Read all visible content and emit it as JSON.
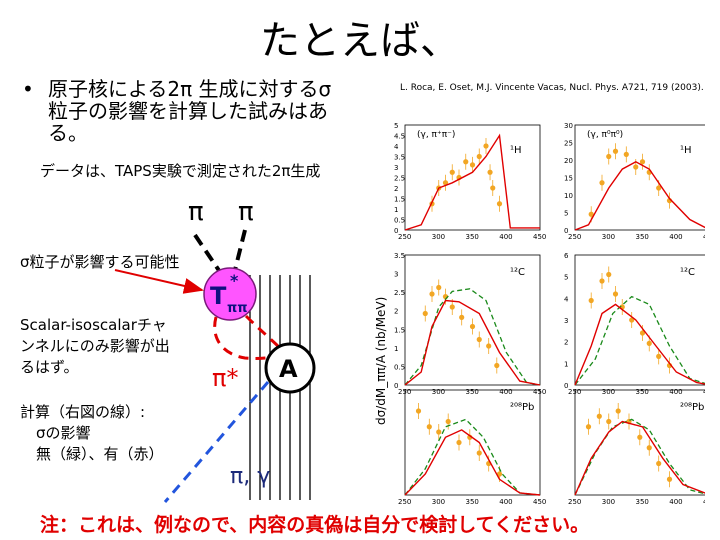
{
  "title": "たとえば、",
  "bullet": {
    "marker": "•",
    "text": "原子核による2π 生成に対するσ粒子の影響を計算した試みはある。"
  },
  "data_note": "データは、TAPS実験で測定された2π生成",
  "sigma_note": "σ粒子が影響する可能性",
  "scalar_note": "Scalar-isoscalarチャンネルにのみ影響が出るはず。",
  "calc_note": {
    "line1": "計算（右図の線）:",
    "line2": "σの影響",
    "line3": "無（緑）、有（赤）"
  },
  "reference": "L. Roca, E. Oset, M.J. Vincente Vacas, Nucl. Phys. A721, 719 (2003).",
  "footnote": "注：これは、例なので、内容の真偽は自分で検討してください。",
  "diagram": {
    "pi_top_left": "π",
    "pi_top_right": "π",
    "t_label": "T",
    "t_sub": "ππ",
    "t_sup": "*",
    "nucleus": "A",
    "pi_star": "π*",
    "pi_gamma": "π, γ"
  },
  "colors": {
    "red": "#e00000",
    "green": "#1a8a1a",
    "blue": "#2255dd",
    "orange_data": "#f2a623",
    "magenta_fill": "#ff55ff",
    "footnote": "#e00000"
  },
  "plots": {
    "ylabel": "dσ/dM_ππ/A (nb/MeV)",
    "x_ticks": [
      "250",
      "300",
      "350",
      "400",
      "450"
    ],
    "panels": [
      {
        "reaction": "(γ, π⁺π⁻)",
        "target": "¹H",
        "y_ticks": [
          "0",
          "0.5",
          "1",
          "1.5",
          "2",
          "2.5",
          "3",
          "3.5",
          "4",
          "4.5",
          "5"
        ]
      },
      {
        "reaction": "(γ, π⁰π⁰)",
        "target": "¹H",
        "y_ticks": [
          "0",
          "5",
          "10",
          "15",
          "20",
          "25",
          "30"
        ]
      },
      {
        "target": "¹²C",
        "y_ticks": [
          "0",
          "0.5",
          "1",
          "1.5",
          "2",
          "2.5",
          "3",
          "3.5"
        ]
      },
      {
        "target": "¹²C",
        "y_ticks": [
          "0",
          "1",
          "2",
          "3",
          "4",
          "5",
          "6"
        ]
      },
      {
        "target": "²⁰⁸Pb",
        "y_ticks": []
      },
      {
        "target": "²⁰⁸Pb",
        "y_ticks": []
      }
    ]
  }
}
